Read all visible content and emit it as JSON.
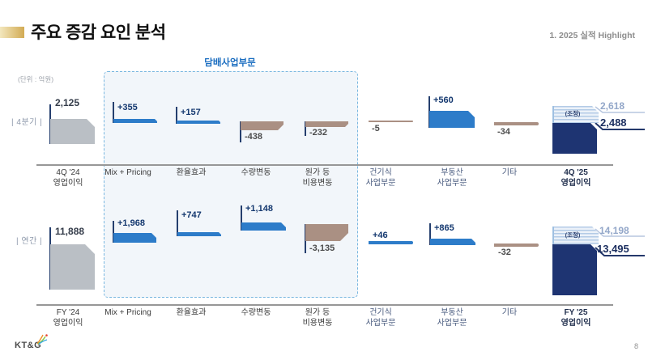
{
  "header": {
    "title": "주요 증감 요인 분석",
    "section": "1. 2025 실적 Highlight",
    "unit": "(단위 : 억원)",
    "tobacco_box_label": "담배사업부문"
  },
  "footer": {
    "logo": "KT&G",
    "page": "8"
  },
  "colors": {
    "accent_gold": "#d2ab54",
    "bar_blue": "#2d7cc9",
    "bar_brown": "#aa9083",
    "bar_gray": "#babfc5",
    "bar_navy": "#1e3472",
    "connector_navy": "#253f6e",
    "box_border": "#79b7e0",
    "hatch_blue": "#b3cbe6"
  },
  "chart_data": [
    {
      "type": "waterfall",
      "row_label": "| 4분기 |",
      "categories": [
        "4Q '24\n영업이익",
        "Mix + Pricing",
        "환율효과",
        "수량변동",
        "원가 등\n비용변동",
        "건기식\n사업부문",
        "부동산\n사업부문",
        "기타",
        "4Q '25\n영업이익"
      ],
      "values": [
        2125,
        355,
        157,
        -438,
        -232,
        -5,
        560,
        -34,
        2488
      ],
      "value_labels": [
        "2,125",
        "+355",
        "+157",
        "-438",
        "-232",
        "-5",
        "+560",
        "-34",
        ""
      ],
      "final": {
        "reported": "2,618",
        "adjusted": "2,488",
        "adjust_tag": "(조정)"
      }
    },
    {
      "type": "waterfall",
      "row_label": "| 연간 |",
      "categories": [
        "FY '24\n영업이익",
        "Mix + Pricing",
        "환율효과",
        "수량변동",
        "원가 등\n비용변동",
        "건기식\n사업부문",
        "부동산\n사업부문",
        "기타",
        "FY '25\n영업이익"
      ],
      "values": [
        11888,
        1968,
        747,
        1148,
        -3135,
        46,
        865,
        -32,
        13495
      ],
      "value_labels": [
        "11,888",
        "+1,968",
        "+747",
        "+1,148",
        "-3,135",
        "+46",
        "+865",
        "-32",
        ""
      ],
      "final": {
        "reported": "14,198",
        "adjusted": "13,495",
        "adjust_tag": "(조정)"
      }
    }
  ]
}
